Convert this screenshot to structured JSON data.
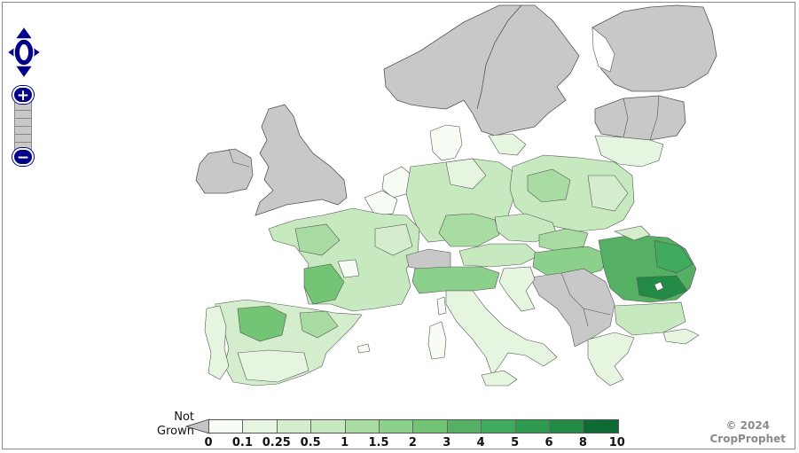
{
  "legend": {
    "not_grown_line1": "Not",
    "not_grown_line2": "Grown",
    "not_grown_color": "#c4c4c4",
    "breaks": [
      "0",
      "0.1",
      "0.25",
      "0.5",
      "1",
      "1.5",
      "2",
      "3",
      "4",
      "5",
      "6",
      "8",
      "10"
    ],
    "colors": [
      "#f7fcf5",
      "#e5f5e0",
      "#d4eecd",
      "#c7e9c0",
      "#a8dca2",
      "#8bd08b",
      "#74c476",
      "#55b064",
      "#41ab5d",
      "#2d9a4f",
      "#238b45",
      "#0e6b33",
      "#00441b"
    ]
  },
  "copyright": {
    "line1": "© 2024",
    "line2": "CropProphet"
  },
  "map_colors": {
    "not_grown": "#c8c8c8",
    "water": "#ffffff",
    "border": "#555555"
  },
  "controls": {
    "zoom_in": "+",
    "zoom_out": "−",
    "accent": "#00008b"
  }
}
